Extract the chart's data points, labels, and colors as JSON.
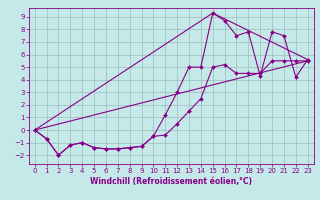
{
  "xlabel": "Windchill (Refroidissement éolien,°C)",
  "ylabel": "",
  "xlim": [
    -0.5,
    23.5
  ],
  "ylim": [
    -2.7,
    9.7
  ],
  "xticks": [
    0,
    1,
    2,
    3,
    4,
    5,
    6,
    7,
    8,
    9,
    10,
    11,
    12,
    13,
    14,
    15,
    16,
    17,
    18,
    19,
    20,
    21,
    22,
    23
  ],
  "yticks": [
    -2,
    -1,
    0,
    1,
    2,
    3,
    4,
    5,
    6,
    7,
    8,
    9
  ],
  "bg_color": "#c5e8e8",
  "line_color": "#880088",
  "grid_color": "#9bbcbc",
  "lines": [
    {
      "x": [
        0,
        1,
        2,
        3,
        4,
        5,
        6,
        7,
        8,
        9,
        10,
        11,
        12,
        13,
        14,
        15,
        16,
        17,
        18,
        19,
        20,
        21,
        22,
        23
      ],
      "y": [
        0,
        -0.7,
        -2,
        -1.2,
        -1,
        -1.4,
        -1.5,
        -1.5,
        -1.4,
        -1.3,
        -0.5,
        1.2,
        3,
        5,
        5,
        9.3,
        8.7,
        7.5,
        7.8,
        4.3,
        7.8,
        7.5,
        4.2,
        5.6
      ],
      "has_markers": true
    },
    {
      "x": [
        0,
        1,
        2,
        3,
        4,
        5,
        6,
        7,
        8,
        9,
        10,
        11,
        12,
        13,
        14,
        15,
        16,
        17,
        18,
        19,
        20,
        21,
        22,
        23
      ],
      "y": [
        0,
        -0.7,
        -2,
        -1.2,
        -1,
        -1.4,
        -1.5,
        -1.5,
        -1.4,
        -1.3,
        -0.5,
        -0.4,
        0.5,
        1.5,
        2.5,
        5,
        5.2,
        4.5,
        4.5,
        4.5,
        5.5,
        5.5,
        5.5,
        5.5
      ],
      "has_markers": true
    },
    {
      "x": [
        0,
        15,
        23
      ],
      "y": [
        0,
        9.3,
        5.6
      ],
      "has_markers": false
    },
    {
      "x": [
        0,
        23
      ],
      "y": [
        0,
        5.5
      ],
      "has_markers": false
    }
  ],
  "tick_fontsize": 5,
  "xlabel_fontsize": 5.5,
  "marker_size": 2.0,
  "linewidth": 0.8
}
